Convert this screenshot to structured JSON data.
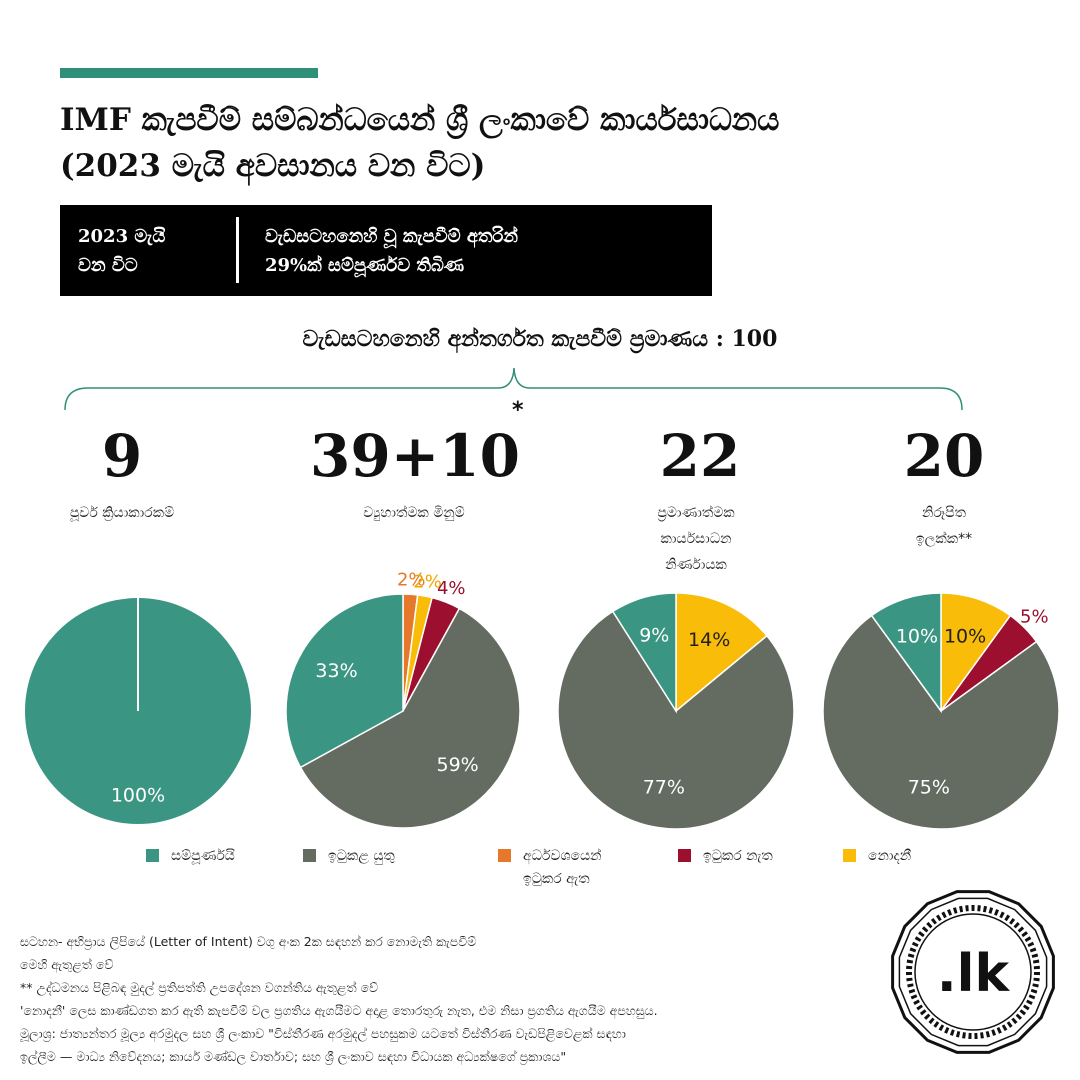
{
  "header": {
    "title_line1": "IMF කැපවීම් සම්බන්ධයෙන් ශ්‍රී ලංකාවේ කාර්යසාධනය",
    "title_line2": "(2023 මැයි  අවසානය වන විට)"
  },
  "info_box": {
    "left_line1": "2023 මැයි",
    "left_line2": "වන විට",
    "right_line1": "වැඩසටහනෙහි වූ කැපවීම් අතරින්",
    "right_line2": "29%ක් සම්පූර්ණව තිබිණ"
  },
  "subtitle": "වැඩසටහනෙහි අන්තර්ගත කැපවීම් ප්‍රමාණය : 100",
  "asterisk": "*",
  "colors": {
    "completed": "#3a9682",
    "to_be_fulfilled": "#646c61",
    "partially_fulfilled": "#e5782a",
    "not_fulfilled": "#9c0f2f",
    "unknown": "#f9bc08",
    "accent": "#2e9078"
  },
  "chart_data": {
    "type": "pie",
    "legend": [
      {
        "key": "completed",
        "label": "සම්පූර්ණයි"
      },
      {
        "key": "to_be_fulfilled",
        "label": "ඉටුකළ යුතු"
      },
      {
        "key": "partially_fulfilled",
        "label_line1": "අර්ධවශයෙන්",
        "label_line2": "ඉටුකර ඇත"
      },
      {
        "key": "not_fulfilled",
        "label": "ඉටුකර නැත"
      },
      {
        "key": "unknown",
        "label": "නොදනී"
      }
    ],
    "charts": [
      {
        "count": "9",
        "category_lines": [
          "පූර්ව ක්‍රියාකාරකම්"
        ],
        "slices": [
          {
            "key": "completed",
            "value": 100,
            "label": "100%"
          }
        ]
      },
      {
        "count": "39+10",
        "category_lines": [
          "ව්‍යුහාත්මක මිනුම්"
        ],
        "slices": [
          {
            "key": "partially_fulfilled",
            "value": 2,
            "label": "2%"
          },
          {
            "key": "unknown",
            "value": 2,
            "label": "2%"
          },
          {
            "key": "not_fulfilled",
            "value": 4,
            "label": "4%"
          },
          {
            "key": "to_be_fulfilled",
            "value": 59,
            "label": "59%"
          },
          {
            "key": "completed",
            "value": 33,
            "label": "33%"
          }
        ]
      },
      {
        "count": "22",
        "category_lines": [
          "ප්‍රමාණාත්මක",
          "කාර්යසාධන",
          "නිර්ණායක"
        ],
        "slices": [
          {
            "key": "unknown",
            "value": 14,
            "label": "14%"
          },
          {
            "key": "to_be_fulfilled",
            "value": 77,
            "label": "77%"
          },
          {
            "key": "completed",
            "value": 9,
            "label": "9%"
          }
        ]
      },
      {
        "count": "20",
        "category_lines": [
          "නිරූපිත",
          "ඉලක්ක**"
        ],
        "slices": [
          {
            "key": "unknown",
            "value": 10,
            "label": "10%"
          },
          {
            "key": "not_fulfilled",
            "value": 5,
            "label": "5%"
          },
          {
            "key": "to_be_fulfilled",
            "value": 75,
            "label": "75%"
          },
          {
            "key": "completed",
            "value": 10,
            "label": "10%"
          }
        ]
      }
    ]
  },
  "footnotes": [
    "සටහන- අභිප්‍රාය ලිපියේ (Letter of Intent) වගු අංක 2ක සඳහන් කර නොමැති කැපවීම්",
    "මෙහි ඇතුළත් වේ",
    "** උද්ධමනය පිළිබඳ මුදල් ප්‍රතිපත්ති උපදේශන වගන්තිය ඇතුළත් වේ",
    "'නොදනී' ලෙස කාණ්ඩගත කර ඇති කැපවීම් වල ප්‍රගතිය ඇගයීමට අදාළ තොරතුරු නැත, එම නිසා ප්‍රගතිය ඇගයීම අපහසුය.",
    "මූලාශ්‍ර: ජාත්‍යන්තර මූල්‍ය අරමුදල සහ ශ්‍රී ලංකාව \"විස්තීරණ අරමුදල් පහසුකම යටතේ විස්තීරණ වැඩපිළිවෙළක් සඳහා",
    "ඉල්ලීම — මාධ්‍ය නිවේදනය; කාර්ය මණ්ඩල වාර්තාව; සහ ශ්‍රී ලංකාව සඳහා විධායක අධ්‍යක්ෂගේ ප්‍රකාශය\""
  ],
  "logo": {
    "text": ".lk"
  }
}
